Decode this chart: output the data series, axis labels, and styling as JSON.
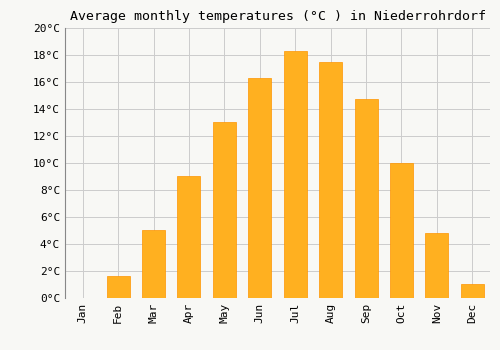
{
  "months": [
    "Jan",
    "Feb",
    "Mar",
    "Apr",
    "May",
    "Jun",
    "Jul",
    "Aug",
    "Sep",
    "Oct",
    "Nov",
    "Dec"
  ],
  "values": [
    0.0,
    1.6,
    5.0,
    9.0,
    13.0,
    16.3,
    18.3,
    17.5,
    14.7,
    10.0,
    4.8,
    1.0
  ],
  "bar_color": "#FFB020",
  "bar_edge_color": "#FF9500",
  "title": "Average monthly temperatures (°C ) in Niederrohrdorf",
  "ylim": [
    0,
    20
  ],
  "ytick_step": 2,
  "background_color": "#F8F8F5",
  "grid_color": "#CCCCCC",
  "title_fontsize": 9.5,
  "tick_fontsize": 8,
  "bar_width": 0.65
}
